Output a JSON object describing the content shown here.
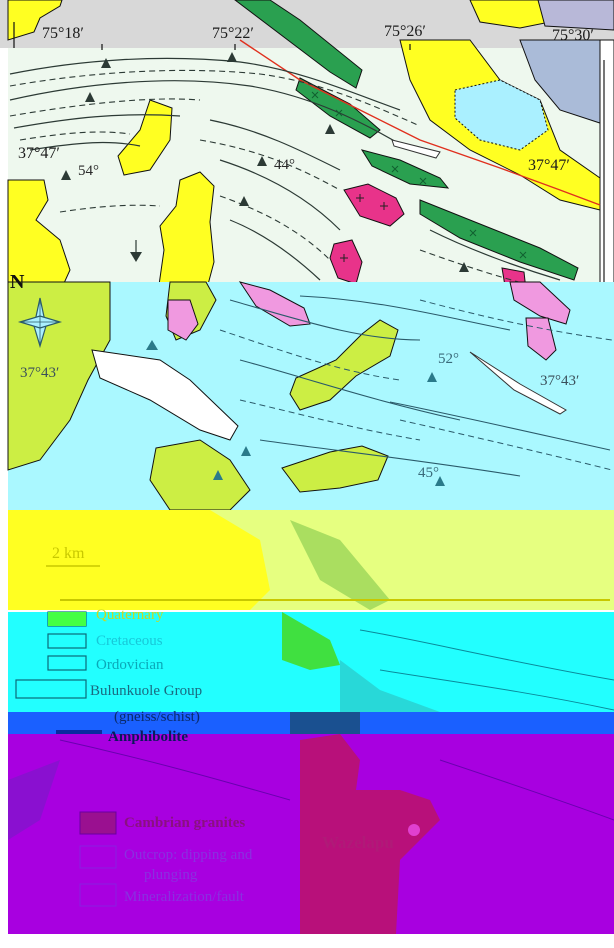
{
  "longitudes": [
    "75°18′",
    "75°22′",
    "75°26′",
    "75°30′"
  ],
  "latitudes": {
    "lat_47_left": "37°47′",
    "lat_47_right": "37°47′",
    "lat_43_left": "37°43′",
    "lat_43_right": "37°43′"
  },
  "dips": [
    "54°",
    "44°",
    "52°",
    "45°"
  ],
  "north_label": "N",
  "scale_label": "2 km",
  "town_label": "Wazelapu",
  "legend": {
    "items": [
      {
        "label": "Quaternary"
      },
      {
        "label": "Cretaceous"
      },
      {
        "label": "Ordovician"
      },
      {
        "label": "Bulunkuole Group"
      },
      {
        "label": "(gneiss/schist)"
      },
      {
        "label": "Amphibolite"
      },
      {
        "label": "Cambrian granites"
      },
      {
        "label": "Outcrop: dipping and"
      },
      {
        "label": "plunging"
      },
      {
        "label": "Mineralization/fault"
      }
    ]
  },
  "colors": {
    "quaternary": "#ffff22",
    "terrane": "#eef8ee",
    "amphibolite": "#2aa050",
    "granite": "#e8338a",
    "lake": "#aaf0ff",
    "fault": "#e0301e"
  }
}
